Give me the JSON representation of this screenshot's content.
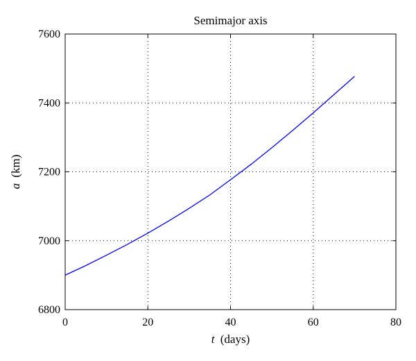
{
  "chart_data": {
    "type": "line",
    "title": "Semimajor axis",
    "xlabel": {
      "symbol": "t",
      "unit": "(days)"
    },
    "ylabel": {
      "symbol": "a",
      "unit": "(km)"
    },
    "xlim": [
      0,
      80
    ],
    "ylim": [
      6800,
      7600
    ],
    "xticks": [
      0,
      20,
      40,
      60,
      80
    ],
    "yticks": [
      6800,
      7000,
      7200,
      7400,
      7600
    ],
    "grid": true,
    "series": [
      {
        "color": "#0000ff",
        "x": [
          0,
          5,
          10,
          15,
          20,
          25,
          30,
          35,
          40,
          45,
          50,
          55,
          60,
          65,
          70
        ],
        "y": [
          6900,
          6928,
          6958,
          6989,
          7022,
          7057,
          7094,
          7133,
          7177,
          7222,
          7270,
          7320,
          7371,
          7424,
          7477
        ]
      }
    ]
  }
}
